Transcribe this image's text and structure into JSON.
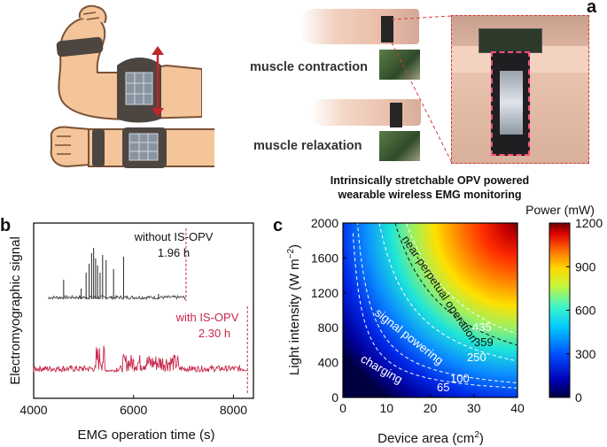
{
  "panel_a": {
    "letter": "a",
    "label_contraction": "muscle contraction",
    "label_relaxation": "muscle relaxation",
    "caption_line1": "Intrinsically stretchable OPV powered",
    "caption_line2": "wearable wireless EMG monitoring",
    "colors": {
      "skin": "#f4c59a",
      "band": "#4d4640",
      "arrow": "#c0262d",
      "dashed_box": "#d23a3a"
    }
  },
  "panel_b": {
    "letter": "b",
    "ylabel": "Electromyographic signal",
    "xlabel": "EMG operation time (s)",
    "xticks": [
      "4000",
      "6000",
      "8000"
    ],
    "xlim": [
      4000,
      8400
    ],
    "without": {
      "label": "without IS-OPV",
      "duration": "1.96 h",
      "color": "#3a3a3a",
      "end_time": 7050
    },
    "with": {
      "label": "with IS-OPV",
      "duration": "2.30 h",
      "color": "#c8284b",
      "end_time": 8280
    }
  },
  "panel_c": {
    "letter": "c",
    "xlabel": "Device area (cm",
    "xlabel_sup": "2",
    "xlabel_end": ")",
    "ylabel": "Light intensity (W m",
    "ylabel_sup": "−2",
    "ylabel_end": ")",
    "colorbar_title": "Power (mW)",
    "colorbar_ticks": [
      "1200",
      "900",
      "600",
      "300",
      "0"
    ],
    "region_labels": [
      "near-perpetual operation",
      "signal powering",
      "charging"
    ],
    "contour_labels": [
      "435",
      "359",
      "250",
      "100",
      "65"
    ]
  },
  "chart_data": [
    {
      "type": "line",
      "panel": "b",
      "xlabel": "EMG operation time (s)",
      "ylabel": "Electromyographic signal",
      "xlim": [
        4000,
        8400
      ],
      "series": [
        {
          "name": "without IS-OPV",
          "end_time_s": 7050,
          "duration": "1.96 h"
        },
        {
          "name": "with IS-OPV",
          "end_time_s": 8280,
          "duration": "2.30 h"
        }
      ]
    },
    {
      "type": "heatmap",
      "panel": "c",
      "xlabel": "Device area (cm2)",
      "ylabel": "Light intensity (W m-2)",
      "xlim": [
        0,
        40
      ],
      "ylim": [
        0,
        2000
      ],
      "xticks": [
        0,
        10,
        20,
        30,
        40
      ],
      "yticks": [
        0,
        400,
        800,
        1200,
        1600,
        2000
      ],
      "colorbar": {
        "title": "Power (mW)",
        "range": [
          0,
          1200
        ],
        "ticks": [
          0,
          300,
          600,
          900,
          1200
        ]
      },
      "contours": [
        65,
        100,
        250,
        359,
        435
      ],
      "regions": [
        "charging",
        "signal powering",
        "near-perpetual operation"
      ]
    }
  ]
}
